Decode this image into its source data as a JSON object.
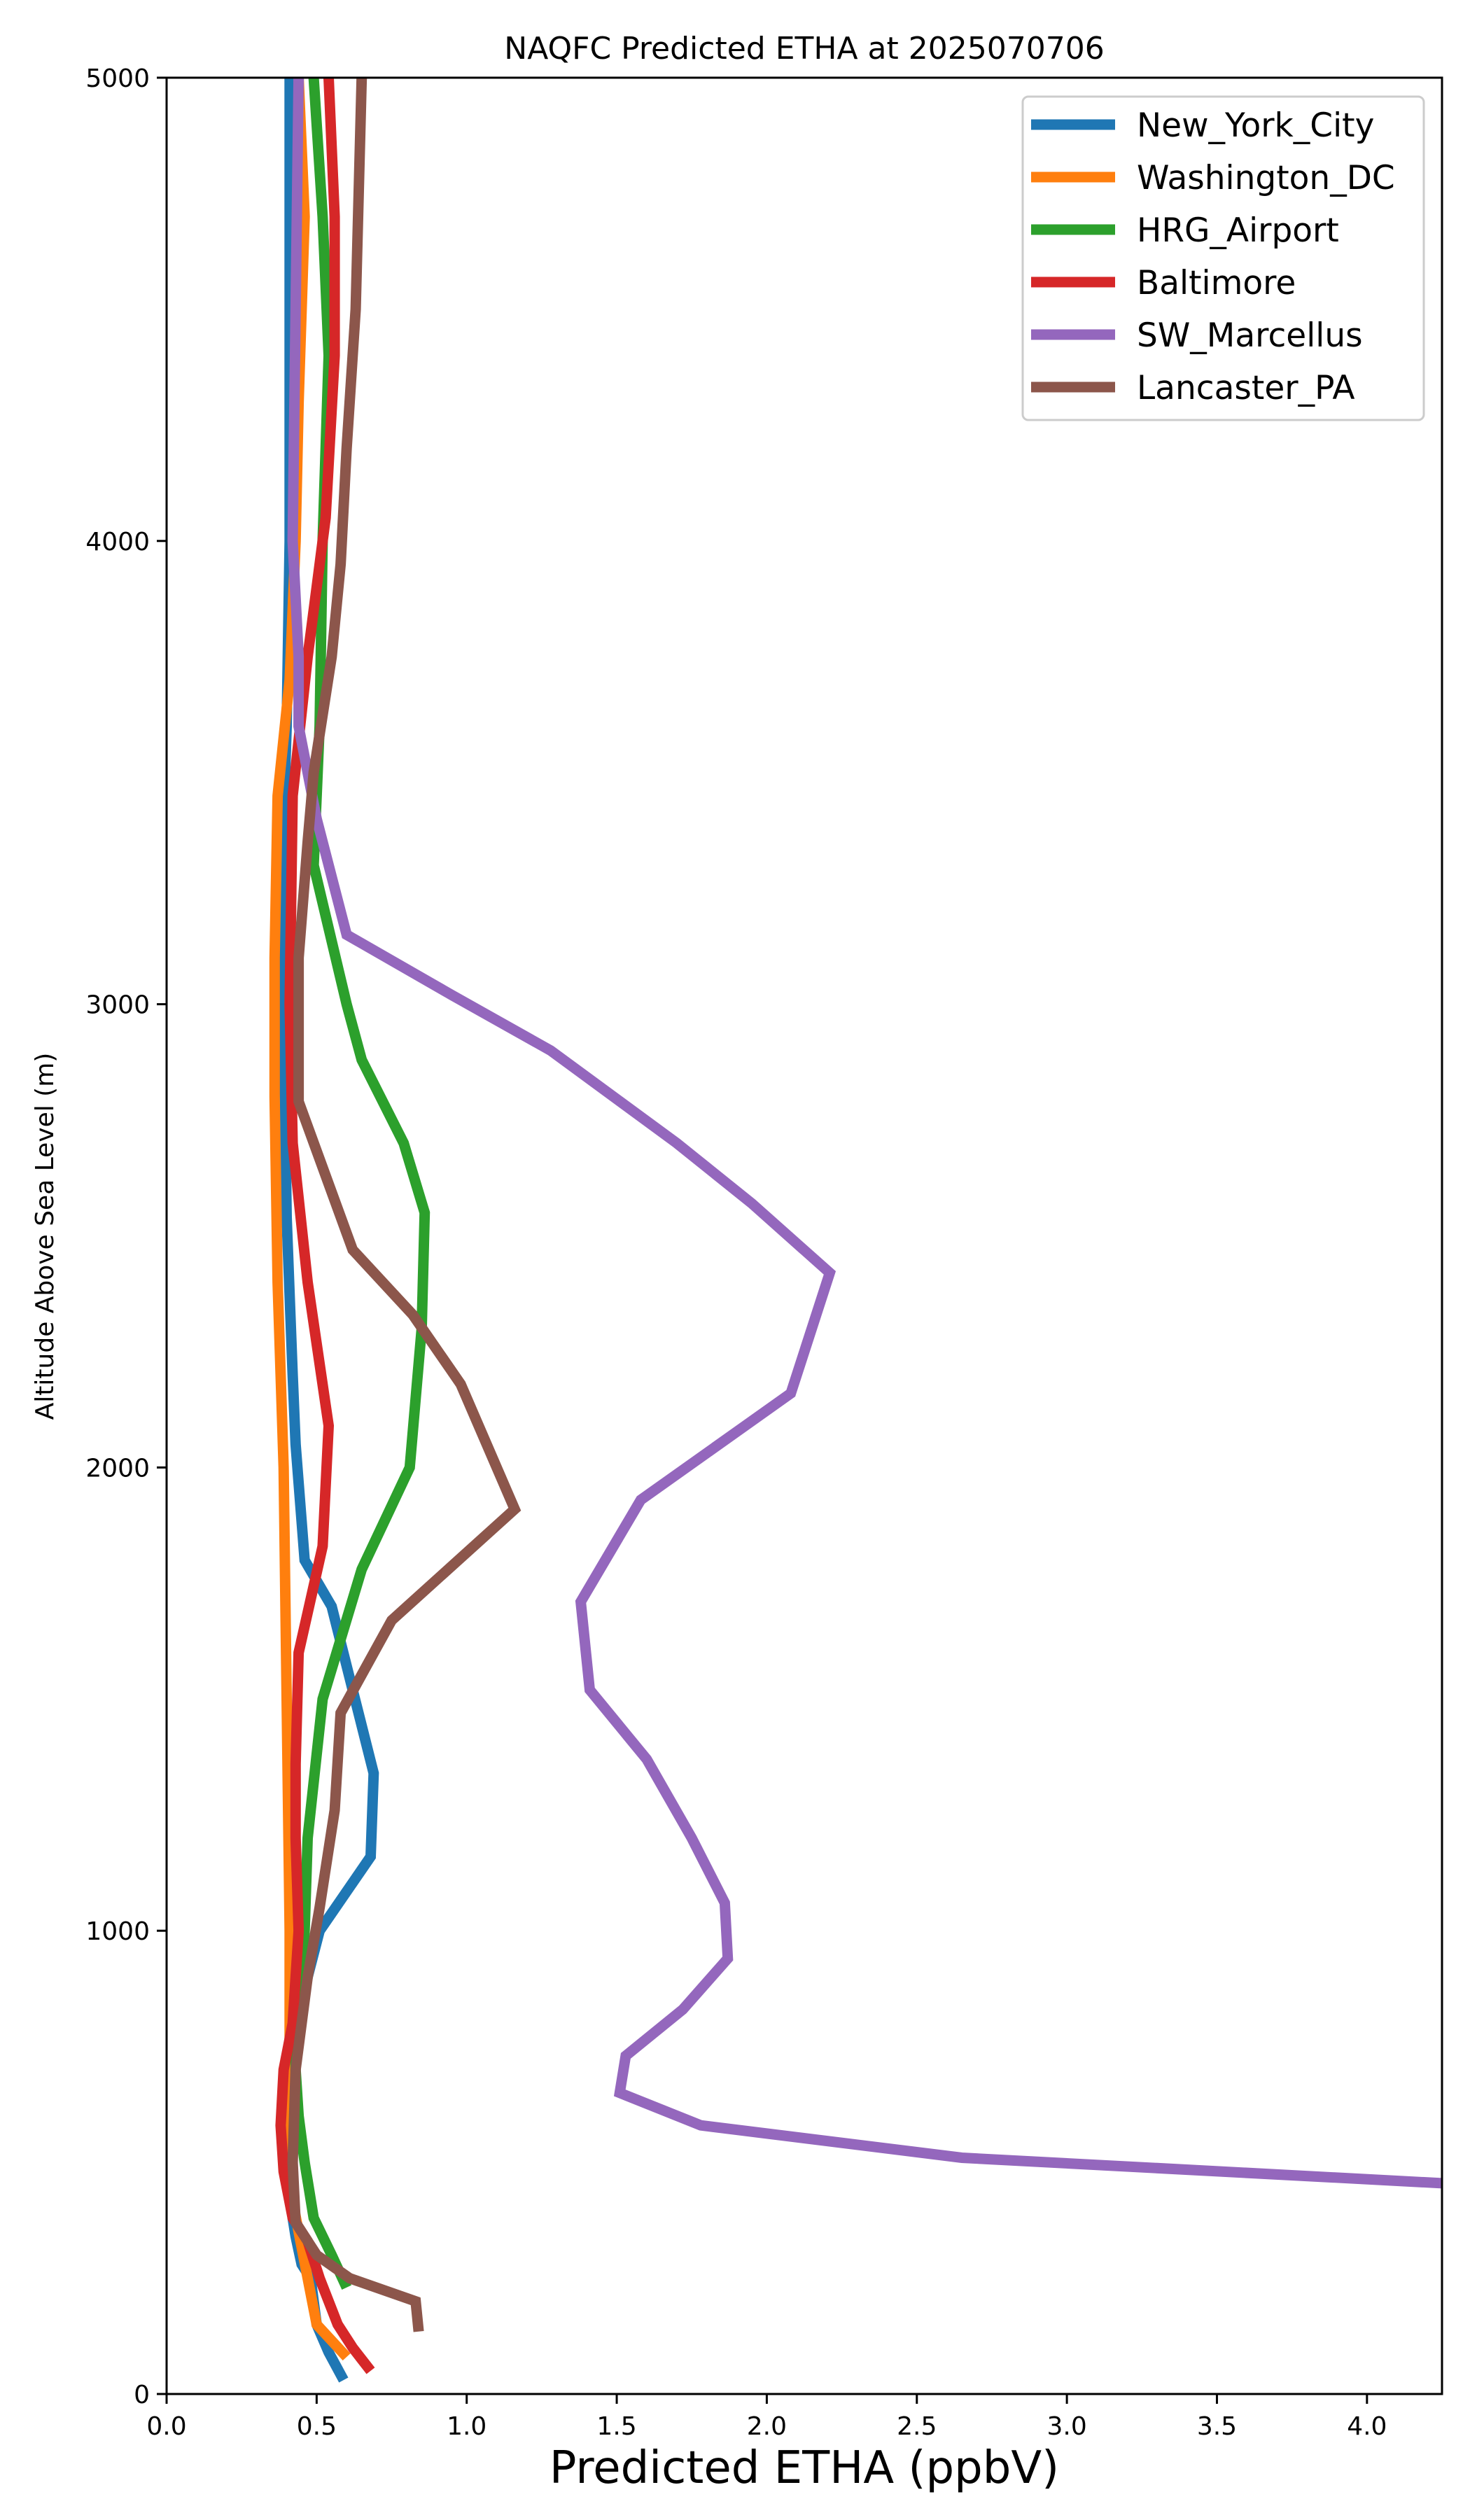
{
  "chart_data": {
    "type": "line",
    "title": "NAQFC Predicted ETHA at 2025070706",
    "xlabel": "Predicted ETHA (ppbV)",
    "ylabel": "Altitude Above Sea Level (m)",
    "xlim": [
      0,
      4.25
    ],
    "ylim": [
      0,
      5000
    ],
    "xticks": [
      "0.0",
      "0.5",
      "1.0",
      "1.5",
      "2.0",
      "2.5",
      "3.0",
      "3.5",
      "4.0"
    ],
    "yticks": [
      "0",
      "1000",
      "2000",
      "3000",
      "4000",
      "5000"
    ],
    "grid": false,
    "legend_position": "top-right",
    "series": [
      {
        "name": "New_York_City",
        "color": "#1f77b4",
        "points": [
          [
            0.59,
            30
          ],
          [
            0.54,
            90
          ],
          [
            0.5,
            150
          ],
          [
            0.48,
            250
          ],
          [
            0.45,
            280
          ],
          [
            0.43,
            340
          ],
          [
            0.42,
            380
          ],
          [
            0.41,
            480
          ],
          [
            0.4,
            600
          ],
          [
            0.42,
            700
          ],
          [
            0.44,
            800
          ],
          [
            0.47,
            900
          ],
          [
            0.51,
            1000
          ],
          [
            0.68,
            1160
          ],
          [
            0.69,
            1340
          ],
          [
            0.55,
            1700
          ],
          [
            0.46,
            1800
          ],
          [
            0.43,
            2050
          ],
          [
            0.42,
            2200
          ],
          [
            0.4,
            2540
          ],
          [
            0.39,
            3000
          ],
          [
            0.39,
            3400
          ],
          [
            0.4,
            3600
          ],
          [
            0.41,
            4000
          ],
          [
            0.41,
            4500
          ],
          [
            0.41,
            5000
          ]
        ]
      },
      {
        "name": "Washington_DC",
        "color": "#ff7f0e",
        "points": [
          [
            0.6,
            80
          ],
          [
            0.5,
            150
          ],
          [
            0.47,
            250
          ],
          [
            0.44,
            350
          ],
          [
            0.41,
            450
          ],
          [
            0.4,
            600
          ],
          [
            0.41,
            700
          ],
          [
            0.41,
            1000
          ],
          [
            0.4,
            1500
          ],
          [
            0.39,
            2000
          ],
          [
            0.37,
            2400
          ],
          [
            0.36,
            2800
          ],
          [
            0.36,
            3100
          ],
          [
            0.37,
            3450
          ],
          [
            0.41,
            3700
          ],
          [
            0.43,
            4000
          ],
          [
            0.44,
            4300
          ],
          [
            0.46,
            4700
          ],
          [
            0.44,
            5000
          ]
        ]
      },
      {
        "name": "HRG_Airport",
        "color": "#2ca02c",
        "points": [
          [
            0.6,
            230
          ],
          [
            0.55,
            300
          ],
          [
            0.49,
            380
          ],
          [
            0.46,
            500
          ],
          [
            0.44,
            600
          ],
          [
            0.43,
            700
          ],
          [
            0.43,
            800
          ],
          [
            0.45,
            900
          ],
          [
            0.46,
            1000
          ],
          [
            0.47,
            1200
          ],
          [
            0.52,
            1500
          ],
          [
            0.65,
            1780
          ],
          [
            0.81,
            2000
          ],
          [
            0.85,
            2300
          ],
          [
            0.86,
            2550
          ],
          [
            0.79,
            2700
          ],
          [
            0.65,
            2880
          ],
          [
            0.6,
            3000
          ],
          [
            0.49,
            3300
          ],
          [
            0.51,
            3600
          ],
          [
            0.52,
            4000
          ],
          [
            0.54,
            4400
          ],
          [
            0.52,
            4700
          ],
          [
            0.49,
            5000
          ]
        ]
      },
      {
        "name": "Baltimore",
        "color": "#d62728",
        "points": [
          [
            0.68,
            50
          ],
          [
            0.62,
            100
          ],
          [
            0.57,
            150
          ],
          [
            0.51,
            250
          ],
          [
            0.47,
            330
          ],
          [
            0.42,
            380
          ],
          [
            0.39,
            480
          ],
          [
            0.38,
            580
          ],
          [
            0.39,
            700
          ],
          [
            0.42,
            800
          ],
          [
            0.43,
            900
          ],
          [
            0.44,
            1000
          ],
          [
            0.43,
            1200
          ],
          [
            0.43,
            1360
          ],
          [
            0.44,
            1600
          ],
          [
            0.52,
            1830
          ],
          [
            0.54,
            2090
          ],
          [
            0.47,
            2400
          ],
          [
            0.42,
            2700
          ],
          [
            0.41,
            3000
          ],
          [
            0.42,
            3450
          ],
          [
            0.47,
            3750
          ],
          [
            0.53,
            4050
          ],
          [
            0.56,
            4400
          ],
          [
            0.56,
            4700
          ],
          [
            0.54,
            5000
          ]
        ]
      },
      {
        "name": "SW_Marcellus",
        "color": "#9467bd",
        "points": [
          [
            4.25,
            455
          ],
          [
            2.65,
            510
          ],
          [
            1.78,
            580
          ],
          [
            1.51,
            650
          ],
          [
            1.53,
            730
          ],
          [
            1.72,
            830
          ],
          [
            1.87,
            940
          ],
          [
            1.86,
            1060
          ],
          [
            1.75,
            1200
          ],
          [
            1.6,
            1370
          ],
          [
            1.41,
            1520
          ],
          [
            1.38,
            1710
          ],
          [
            1.58,
            1930
          ],
          [
            2.08,
            2160
          ],
          [
            2.21,
            2420
          ],
          [
            1.95,
            2570
          ],
          [
            1.7,
            2700
          ],
          [
            1.28,
            2900
          ],
          [
            0.95,
            3020
          ],
          [
            0.6,
            3150
          ],
          [
            0.5,
            3400
          ],
          [
            0.44,
            3600
          ],
          [
            0.44,
            3750
          ],
          [
            0.42,
            4000
          ],
          [
            0.43,
            4500
          ],
          [
            0.44,
            5000
          ]
        ]
      },
      {
        "name": "Lancaster_PA",
        "color": "#8c564b",
        "points": [
          [
            0.84,
            135
          ],
          [
            0.83,
            200
          ],
          [
            0.61,
            250
          ],
          [
            0.5,
            300
          ],
          [
            0.43,
            370
          ],
          [
            0.42,
            500
          ],
          [
            0.43,
            700
          ],
          [
            0.47,
            900
          ],
          [
            0.51,
            1050
          ],
          [
            0.56,
            1260
          ],
          [
            0.58,
            1470
          ],
          [
            0.75,
            1670
          ],
          [
            1.16,
            1910
          ],
          [
            0.98,
            2180
          ],
          [
            0.82,
            2330
          ],
          [
            0.62,
            2470
          ],
          [
            0.44,
            2790
          ],
          [
            0.44,
            3100
          ],
          [
            0.47,
            3350
          ],
          [
            0.49,
            3500
          ],
          [
            0.55,
            3750
          ],
          [
            0.58,
            3950
          ],
          [
            0.6,
            4200
          ],
          [
            0.63,
            4500
          ],
          [
            0.65,
            5000
          ]
        ]
      }
    ]
  }
}
